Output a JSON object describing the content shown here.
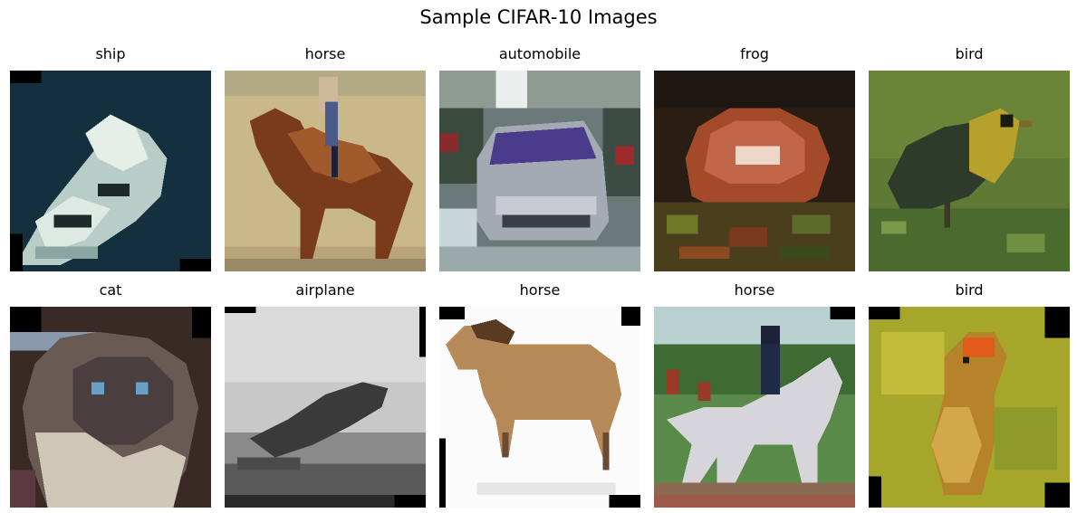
{
  "figure": {
    "title": "Sample CIFAR-10 Images"
  },
  "images": [
    {
      "label": "ship",
      "subject": "ship-photo"
    },
    {
      "label": "horse",
      "subject": "horse-rider-photo"
    },
    {
      "label": "automobile",
      "subject": "automobile-photo"
    },
    {
      "label": "frog",
      "subject": "frog-photo"
    },
    {
      "label": "bird",
      "subject": "bird-on-grass-photo"
    },
    {
      "label": "cat",
      "subject": "cat-photo"
    },
    {
      "label": "airplane",
      "subject": "airplane-grayscale-photo"
    },
    {
      "label": "horse",
      "subject": "horse-white-background-photo"
    },
    {
      "label": "horse",
      "subject": "horse-rider-white-horse-photo"
    },
    {
      "label": "bird",
      "subject": "bird-yellow-background-photo"
    }
  ]
}
